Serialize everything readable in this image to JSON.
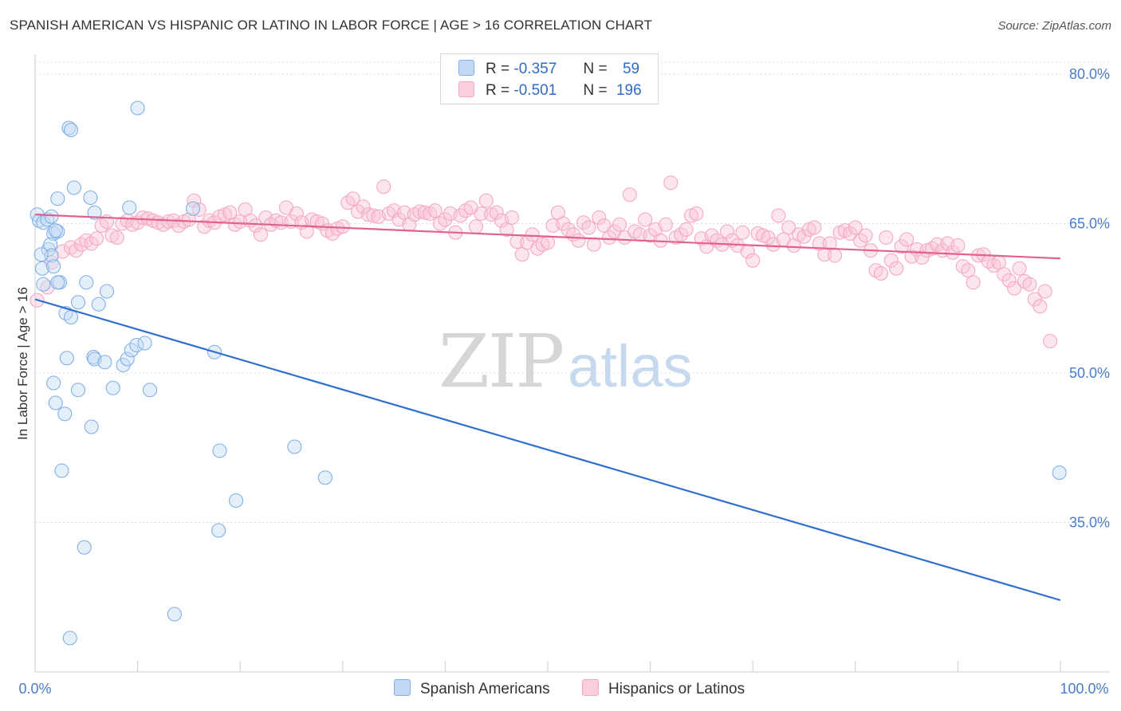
{
  "title": "SPANISH AMERICAN VS HISPANIC OR LATINO IN LABOR FORCE | AGE > 16 CORRELATION CHART",
  "source": "Source: ZipAtlas.com",
  "watermark": {
    "zip": "ZIP",
    "atlas": "atlas"
  },
  "legend": {
    "rows": [
      {
        "r_label": "R =",
        "r_value": "-0.357",
        "n_label": "N =",
        "n_value": "59",
        "color": "#7fb0e8"
      },
      {
        "r_label": "R =",
        "r_value": "-0.501",
        "n_label": "N =",
        "n_value": "196",
        "color": "#f4a8c0"
      }
    ]
  },
  "bottom_legend": [
    "Spanish Americans",
    "Hispanics or Latinos"
  ],
  "chart_data": {
    "type": "scatter",
    "title": "SPANISH AMERICAN VS HISPANIC OR LATINO IN LABOR FORCE | AGE > 16 CORRELATION CHART",
    "ylabel": "In Labor Force | Age > 16",
    "xlabel": "",
    "xlim": [
      0,
      100
    ],
    "ylim": [
      20,
      82
    ],
    "x_tick_labels": [
      "0.0%",
      "100.0%"
    ],
    "y_ticks": [
      35,
      50,
      65,
      80
    ],
    "y_tick_labels": [
      "35.0%",
      "50.0%",
      "65.0%",
      "80.0%"
    ],
    "grid": true,
    "legend_position": "top-center",
    "series": [
      {
        "name": "Spanish Americans",
        "color": "#7fb0e8",
        "line_color": "#2f6fd0",
        "trend": {
          "x": [
            0,
            100
          ],
          "y": [
            57.4,
            27.2
          ]
        },
        "points": [
          [
            0.2,
            65.9
          ],
          [
            0.4,
            65.3
          ],
          [
            0.8,
            65.1
          ],
          [
            1.2,
            65.4
          ],
          [
            1.6,
            65.7
          ],
          [
            1.8,
            64.0
          ],
          [
            2.2,
            64.2
          ],
          [
            1.3,
            62.4
          ],
          [
            1.5,
            62.9
          ],
          [
            1.6,
            61.8
          ],
          [
            0.6,
            61.9
          ],
          [
            0.7,
            60.5
          ],
          [
            1.8,
            60.7
          ],
          [
            0.8,
            58.9
          ],
          [
            2.4,
            59.1
          ],
          [
            2.2,
            59.1
          ],
          [
            5.0,
            59.1
          ],
          [
            4.2,
            57.1
          ],
          [
            6.2,
            56.9
          ],
          [
            3.0,
            56.0
          ],
          [
            3.5,
            55.6
          ],
          [
            7.0,
            58.2
          ],
          [
            2.2,
            67.5
          ],
          [
            3.8,
            68.6
          ],
          [
            5.4,
            67.6
          ],
          [
            5.8,
            66.1
          ],
          [
            9.2,
            66.6
          ],
          [
            15.4,
            66.5
          ],
          [
            3.3,
            74.6
          ],
          [
            3.5,
            74.4
          ],
          [
            10.0,
            76.6
          ],
          [
            2.0,
            64.3
          ],
          [
            5.7,
            51.6
          ],
          [
            5.8,
            51.4
          ],
          [
            6.8,
            51.1
          ],
          [
            3.1,
            51.5
          ],
          [
            8.6,
            50.8
          ],
          [
            9.0,
            51.4
          ],
          [
            9.4,
            52.3
          ],
          [
            9.9,
            52.8
          ],
          [
            10.7,
            53.0
          ],
          [
            17.5,
            52.1
          ],
          [
            1.8,
            49.0
          ],
          [
            4.2,
            48.3
          ],
          [
            7.6,
            48.5
          ],
          [
            11.2,
            48.3
          ],
          [
            2.0,
            47.0
          ],
          [
            2.9,
            45.9
          ],
          [
            5.5,
            44.6
          ],
          [
            25.3,
            42.6
          ],
          [
            18.0,
            42.2
          ],
          [
            2.6,
            40.2
          ],
          [
            28.3,
            39.5
          ],
          [
            19.6,
            37.2
          ],
          [
            17.9,
            34.2
          ],
          [
            4.8,
            32.5
          ],
          [
            13.6,
            25.8
          ],
          [
            3.4,
            23.4
          ],
          [
            99.9,
            40.0
          ]
        ]
      },
      {
        "name": "Hispanics or Latinos",
        "color": "#f4a8c0",
        "line_color": "#e2628f",
        "trend": {
          "x": [
            0,
            100
          ],
          "y": [
            65.9,
            61.5
          ]
        },
        "points": [
          [
            0.2,
            57.3
          ],
          [
            1.2,
            58.6
          ],
          [
            1.6,
            61.1
          ],
          [
            2.7,
            62.2
          ],
          [
            3.5,
            62.6
          ],
          [
            4.0,
            62.3
          ],
          [
            4.5,
            62.9
          ],
          [
            5.0,
            63.3
          ],
          [
            5.5,
            63.0
          ],
          [
            6.0,
            63.5
          ],
          [
            6.5,
            64.8
          ],
          [
            7.0,
            65.2
          ],
          [
            7.5,
            63.8
          ],
          [
            8.0,
            63.6
          ],
          [
            8.5,
            65.0
          ],
          [
            9.0,
            65.3
          ],
          [
            9.5,
            64.9
          ],
          [
            10.0,
            65.1
          ],
          [
            10.5,
            65.6
          ],
          [
            11.0,
            65.5
          ],
          [
            11.5,
            65.3
          ],
          [
            12.0,
            65.1
          ],
          [
            12.5,
            64.9
          ],
          [
            13.0,
            65.2
          ],
          [
            13.5,
            65.3
          ],
          [
            14.0,
            64.8
          ],
          [
            14.5,
            65.2
          ],
          [
            15.0,
            65.4
          ],
          [
            15.5,
            67.3
          ],
          [
            16.0,
            66.4
          ],
          [
            16.5,
            64.7
          ],
          [
            17.0,
            65.3
          ],
          [
            17.5,
            65.1
          ],
          [
            18.0,
            65.7
          ],
          [
            18.5,
            65.9
          ],
          [
            19.0,
            66.1
          ],
          [
            19.5,
            64.9
          ],
          [
            20.0,
            65.2
          ],
          [
            20.5,
            66.4
          ],
          [
            21.0,
            65.3
          ],
          [
            21.5,
            64.8
          ],
          [
            22.0,
            63.9
          ],
          [
            22.5,
            65.6
          ],
          [
            23.0,
            64.9
          ],
          [
            23.5,
            65.3
          ],
          [
            24.0,
            65.1
          ],
          [
            24.5,
            66.6
          ],
          [
            25.0,
            65.2
          ],
          [
            25.5,
            66.0
          ],
          [
            26.0,
            65.1
          ],
          [
            26.5,
            64.2
          ],
          [
            27.0,
            65.4
          ],
          [
            27.5,
            65.2
          ],
          [
            28.0,
            65.0
          ],
          [
            28.5,
            64.3
          ],
          [
            29.0,
            64.0
          ],
          [
            29.5,
            64.5
          ],
          [
            30.0,
            64.7
          ],
          [
            30.5,
            67.1
          ],
          [
            31.0,
            67.5
          ],
          [
            31.5,
            66.2
          ],
          [
            32.0,
            66.7
          ],
          [
            32.5,
            65.9
          ],
          [
            33.0,
            65.8
          ],
          [
            33.5,
            65.7
          ],
          [
            34.0,
            68.7
          ],
          [
            34.5,
            66.0
          ],
          [
            35.0,
            66.3
          ],
          [
            35.5,
            65.4
          ],
          [
            36.0,
            66.1
          ],
          [
            36.5,
            64.9
          ],
          [
            37.0,
            65.9
          ],
          [
            37.5,
            66.2
          ],
          [
            38.0,
            66.1
          ],
          [
            38.5,
            66.0
          ],
          [
            39.0,
            66.3
          ],
          [
            39.5,
            65.0
          ],
          [
            40.0,
            65.4
          ],
          [
            40.5,
            66.0
          ],
          [
            41.0,
            64.1
          ],
          [
            41.5,
            65.8
          ],
          [
            42.0,
            66.3
          ],
          [
            42.5,
            66.6
          ],
          [
            43.0,
            64.7
          ],
          [
            43.5,
            66.0
          ],
          [
            44.0,
            67.3
          ],
          [
            44.5,
            65.9
          ],
          [
            45.0,
            66.1
          ],
          [
            45.5,
            65.3
          ],
          [
            46.0,
            64.4
          ],
          [
            46.5,
            65.6
          ],
          [
            47.0,
            63.2
          ],
          [
            47.5,
            61.9
          ],
          [
            48.0,
            63.1
          ],
          [
            48.5,
            63.9
          ],
          [
            49.0,
            62.5
          ],
          [
            49.5,
            62.9
          ],
          [
            50.0,
            63.1
          ],
          [
            50.5,
            64.8
          ],
          [
            51.0,
            66.1
          ],
          [
            51.5,
            65.0
          ],
          [
            52.0,
            64.4
          ],
          [
            52.5,
            63.9
          ],
          [
            53.0,
            63.3
          ],
          [
            53.5,
            65.1
          ],
          [
            54.0,
            64.6
          ],
          [
            54.5,
            62.9
          ],
          [
            55.0,
            65.6
          ],
          [
            55.5,
            64.8
          ],
          [
            56.0,
            63.6
          ],
          [
            56.5,
            64.2
          ],
          [
            57.0,
            64.9
          ],
          [
            57.5,
            63.6
          ],
          [
            58.0,
            67.9
          ],
          [
            58.5,
            64.2
          ],
          [
            59.0,
            63.9
          ],
          [
            59.5,
            65.4
          ],
          [
            60.0,
            63.8
          ],
          [
            60.5,
            64.4
          ],
          [
            61.0,
            63.3
          ],
          [
            61.5,
            64.9
          ],
          [
            62.0,
            69.1
          ],
          [
            62.5,
            63.6
          ],
          [
            63.0,
            63.9
          ],
          [
            63.5,
            64.4
          ],
          [
            64.0,
            65.8
          ],
          [
            64.5,
            66.0
          ],
          [
            65.0,
            63.5
          ],
          [
            65.5,
            62.7
          ],
          [
            66.0,
            63.8
          ],
          [
            66.5,
            63.3
          ],
          [
            67.0,
            62.9
          ],
          [
            67.5,
            64.2
          ],
          [
            68.0,
            63.3
          ],
          [
            68.5,
            62.8
          ],
          [
            69.0,
            64.1
          ],
          [
            69.5,
            62.2
          ],
          [
            70.0,
            61.3
          ],
          [
            70.5,
            64.0
          ],
          [
            71.0,
            63.8
          ],
          [
            71.5,
            63.6
          ],
          [
            72.0,
            62.9
          ],
          [
            72.5,
            65.8
          ],
          [
            73.0,
            63.4
          ],
          [
            73.5,
            64.6
          ],
          [
            74.0,
            62.8
          ],
          [
            74.5,
            63.9
          ],
          [
            75.0,
            63.7
          ],
          [
            75.5,
            64.4
          ],
          [
            76.0,
            64.6
          ],
          [
            76.5,
            63.0
          ],
          [
            77.0,
            61.9
          ],
          [
            77.5,
            63.0
          ],
          [
            78.0,
            61.8
          ],
          [
            78.5,
            64.1
          ],
          [
            79.0,
            64.3
          ],
          [
            79.5,
            64.0
          ],
          [
            80.0,
            64.6
          ],
          [
            80.5,
            63.3
          ],
          [
            81.0,
            63.8
          ],
          [
            81.5,
            62.3
          ],
          [
            82.0,
            60.3
          ],
          [
            82.5,
            60.0
          ],
          [
            83.0,
            63.6
          ],
          [
            83.5,
            61.3
          ],
          [
            84.0,
            60.5
          ],
          [
            84.5,
            62.7
          ],
          [
            85.0,
            63.4
          ],
          [
            85.5,
            61.7
          ],
          [
            86.0,
            62.4
          ],
          [
            86.5,
            61.6
          ],
          [
            87.0,
            62.3
          ],
          [
            87.5,
            62.5
          ],
          [
            88.0,
            62.9
          ],
          [
            88.5,
            62.3
          ],
          [
            89.0,
            63.0
          ],
          [
            89.5,
            62.1
          ],
          [
            90.0,
            62.8
          ],
          [
            90.5,
            60.7
          ],
          [
            91.0,
            60.3
          ],
          [
            91.5,
            59.1
          ],
          [
            92.0,
            61.8
          ],
          [
            92.5,
            61.9
          ],
          [
            93.0,
            61.2
          ],
          [
            93.5,
            60.8
          ],
          [
            94.0,
            61.1
          ],
          [
            94.5,
            59.9
          ],
          [
            95.0,
            59.3
          ],
          [
            95.5,
            58.5
          ],
          [
            96.0,
            60.5
          ],
          [
            96.5,
            59.2
          ],
          [
            97.0,
            58.9
          ],
          [
            97.5,
            57.4
          ],
          [
            98.0,
            56.7
          ],
          [
            98.5,
            58.2
          ],
          [
            99.0,
            53.2
          ]
        ]
      }
    ]
  }
}
